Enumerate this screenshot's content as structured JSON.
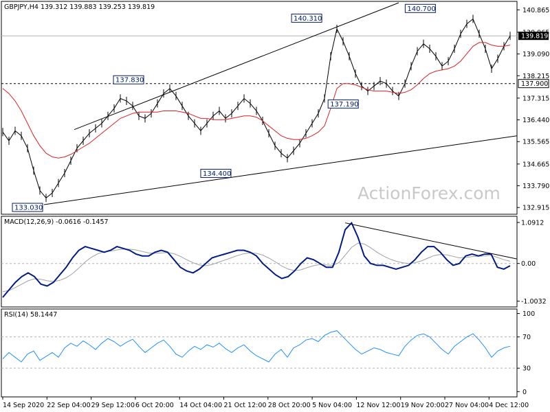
{
  "chart_data": {
    "type": "line",
    "symbol_header": "GBPJPY,H4  139.312 139.883 139.253 139.819",
    "watermark": "ActionForex.com",
    "x_labels": [
      "14 Sep 2020",
      "22 Sep 04:00",
      "29 Sep 12:00",
      "6 Oct 20:00",
      "14 Oct 04:00",
      "21 Oct 12:00",
      "28 Oct 20:00",
      "5 Nov 04:00",
      "12 Nov 12:00",
      "19 Nov 20:00",
      "27 Nov 04:00",
      "4 Dec 12:00"
    ],
    "price_panel": {
      "y_ticks": [
        "140.865",
        "139.965",
        "139.090",
        "138.215",
        "137.315",
        "136.440",
        "135.565",
        "134.665",
        "133.790",
        "132.915"
      ],
      "y_tick_values": [
        140.865,
        139.965,
        139.09,
        138.215,
        137.315,
        136.44,
        135.565,
        134.665,
        133.79,
        132.915
      ],
      "ylim": [
        132.7,
        141.15
      ],
      "current_price_label": "139.819",
      "current_price": 139.819,
      "support_label": "137.900",
      "support_level": 137.9,
      "annotations": [
        {
          "label": "133.030",
          "x": 0.056,
          "y": 133.03
        },
        {
          "label": "137.830",
          "x": 0.248,
          "y": 137.83
        },
        {
          "label": "134.400",
          "x": 0.42,
          "y": 134.4
        },
        {
          "label": "140.310",
          "x": 0.599,
          "y": 140.31
        },
        {
          "label": "137.190",
          "x": 0.671,
          "y": 137.19
        },
        {
          "label": "140.700",
          "x": 0.823,
          "y": 140.7
        }
      ],
      "close_series": [
        135.95,
        135.6,
        136.0,
        135.8,
        135.3,
        134.4,
        133.6,
        133.3,
        133.5,
        133.9,
        134.3,
        134.8,
        135.3,
        135.6,
        135.9,
        136.1,
        136.3,
        136.6,
        136.9,
        137.3,
        137.2,
        137.0,
        136.6,
        136.5,
        136.7,
        137.1,
        137.5,
        137.7,
        137.4,
        137.0,
        136.6,
        136.3,
        136.0,
        136.3,
        136.6,
        136.8,
        136.5,
        136.7,
        137.0,
        137.3,
        137.1,
        136.8,
        136.4,
        135.9,
        135.4,
        135.1,
        134.9,
        135.2,
        135.5,
        135.9,
        136.3,
        136.7,
        137.3,
        139.0,
        140.1,
        139.6,
        139.0,
        138.3,
        137.8,
        137.6,
        137.8,
        138.0,
        137.9,
        137.6,
        137.4,
        137.9,
        138.6,
        139.2,
        139.5,
        139.3,
        139.0,
        138.6,
        138.8,
        139.3,
        139.9,
        140.3,
        140.5,
        139.9,
        139.3,
        138.5,
        138.9,
        139.4,
        139.819
      ],
      "ma_series": [
        137.7,
        137.5,
        137.2,
        136.8,
        136.3,
        135.8,
        135.4,
        135.1,
        134.95,
        134.9,
        134.95,
        135.05,
        135.2,
        135.35,
        135.5,
        135.7,
        135.9,
        136.1,
        136.3,
        136.5,
        136.6,
        136.7,
        136.75,
        136.75,
        136.75,
        136.75,
        136.8,
        136.8,
        136.8,
        136.75,
        136.7,
        136.6,
        136.5,
        136.5,
        136.45,
        136.45,
        136.45,
        136.5,
        136.55,
        136.6,
        136.6,
        136.55,
        136.4,
        136.2,
        136.0,
        135.8,
        135.7,
        135.65,
        135.65,
        135.7,
        135.8,
        135.95,
        136.2,
        136.9,
        137.7,
        137.9,
        137.9,
        137.85,
        137.75,
        137.65,
        137.6,
        137.6,
        137.6,
        137.55,
        137.5,
        137.55,
        137.65,
        137.85,
        138.1,
        138.3,
        138.4,
        138.45,
        138.5,
        138.6,
        138.8,
        139.1,
        139.4,
        139.55,
        139.55,
        139.45,
        139.4,
        139.4,
        139.45
      ]
    },
    "macd_panel": {
      "label": "MACD(12,26,9) -0.0616 -0.1457",
      "y_ticks": [
        "1.0912",
        "0.00",
        "-1.0032"
      ],
      "y_tick_values": [
        1.0912,
        0.0,
        -1.0032
      ],
      "ylim": [
        -1.12,
        1.2
      ],
      "current_label": "0.00",
      "macd_series": [
        -0.9,
        -0.7,
        -0.5,
        -0.35,
        -0.25,
        -0.35,
        -0.55,
        -0.6,
        -0.5,
        -0.3,
        -0.1,
        0.15,
        0.35,
        0.45,
        0.4,
        0.35,
        0.3,
        0.35,
        0.45,
        0.4,
        0.35,
        0.25,
        0.2,
        0.2,
        0.3,
        0.35,
        0.3,
        0.1,
        -0.1,
        -0.2,
        -0.25,
        -0.15,
        0.0,
        0.15,
        0.2,
        0.25,
        0.3,
        0.35,
        0.35,
        0.3,
        0.2,
        0.0,
        -0.15,
        -0.3,
        -0.4,
        -0.35,
        -0.2,
        0.0,
        0.15,
        0.1,
        0.0,
        -0.1,
        -0.1,
        0.3,
        0.9,
        1.08,
        0.7,
        0.2,
        0.0,
        -0.05,
        -0.05,
        -0.1,
        -0.15,
        -0.1,
        -0.05,
        0.1,
        0.3,
        0.45,
        0.45,
        0.3,
        0.1,
        -0.05,
        0.0,
        0.2,
        0.25,
        0.2,
        0.25,
        0.25,
        -0.1,
        -0.15,
        -0.06
      ],
      "signal_series": [
        -0.75,
        -0.72,
        -0.64,
        -0.55,
        -0.46,
        -0.41,
        -0.42,
        -0.46,
        -0.48,
        -0.45,
        -0.38,
        -0.27,
        -0.12,
        0.04,
        0.17,
        0.26,
        0.31,
        0.33,
        0.36,
        0.38,
        0.38,
        0.36,
        0.32,
        0.28,
        0.27,
        0.28,
        0.29,
        0.26,
        0.19,
        0.1,
        0.02,
        -0.04,
        -0.06,
        -0.03,
        0.03,
        0.09,
        0.15,
        0.21,
        0.26,
        0.28,
        0.27,
        0.22,
        0.14,
        0.04,
        -0.07,
        -0.15,
        -0.19,
        -0.17,
        -0.11,
        -0.06,
        -0.03,
        -0.04,
        -0.05,
        0.02,
        0.22,
        0.43,
        0.54,
        0.52,
        0.42,
        0.3,
        0.2,
        0.12,
        0.06,
        0.02,
        0.0,
        0.02,
        0.07,
        0.14,
        0.21,
        0.24,
        0.23,
        0.19,
        0.15,
        0.16,
        0.18,
        0.19,
        0.2,
        0.22,
        0.16,
        0.1,
        0.06
      ],
      "divergence_line": true
    },
    "rsi_panel": {
      "label": "RSI(14) 58.1447",
      "y_ticks": [
        "100",
        "70",
        "30",
        "0"
      ],
      "y_tick_values": [
        100,
        70,
        30,
        0
      ],
      "ylim": [
        -5,
        104
      ],
      "levels": [
        70,
        30
      ],
      "rsi_series": [
        42,
        50,
        44,
        38,
        48,
        52,
        40,
        45,
        50,
        44,
        56,
        62,
        58,
        65,
        60,
        54,
        62,
        68,
        64,
        58,
        63,
        67,
        58,
        50,
        56,
        62,
        66,
        58,
        48,
        44,
        52,
        58,
        54,
        60,
        57,
        62,
        55,
        50,
        56,
        60,
        52,
        46,
        42,
        38,
        48,
        54,
        44,
        56,
        60,
        66,
        68,
        64,
        72,
        76,
        78,
        70,
        62,
        54,
        48,
        52,
        56,
        54,
        50,
        48,
        46,
        58,
        66,
        72,
        74,
        70,
        62,
        54,
        48,
        58,
        64,
        70,
        74,
        66,
        56,
        44,
        52,
        56,
        58.1
      ]
    }
  }
}
